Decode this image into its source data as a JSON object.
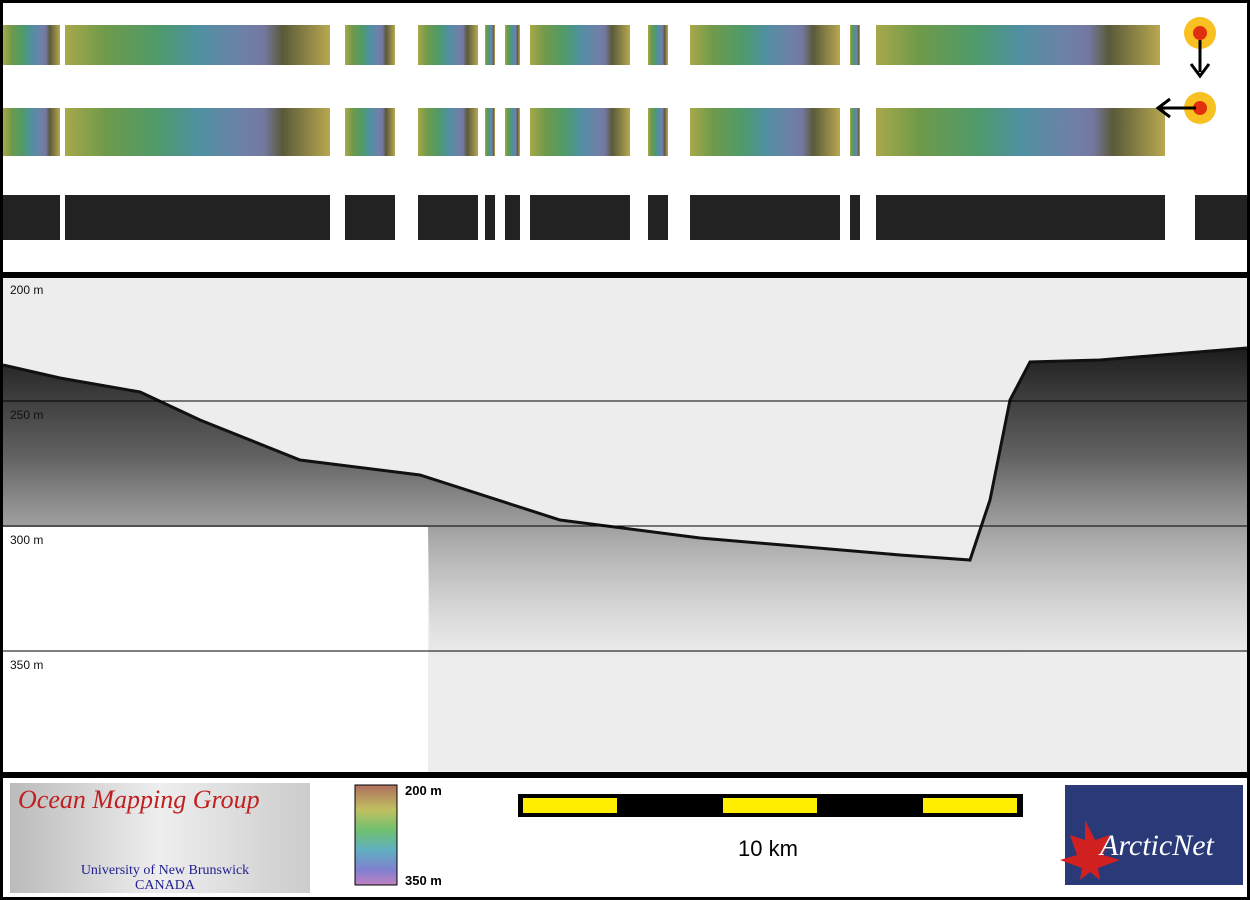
{
  "echogram": {
    "depth_labels": [
      "200 m",
      "250 m",
      "300 m",
      "350 m"
    ]
  },
  "legend": {
    "top": "200 m",
    "bottom": "350 m"
  },
  "scale_bar": {
    "label": "10 km"
  },
  "logos": {
    "omg": {
      "title": "Ocean Mapping Group",
      "line1": "University of New Brunswick",
      "line2": "CANADA"
    },
    "arcticnet": "ArcticNet"
  }
}
